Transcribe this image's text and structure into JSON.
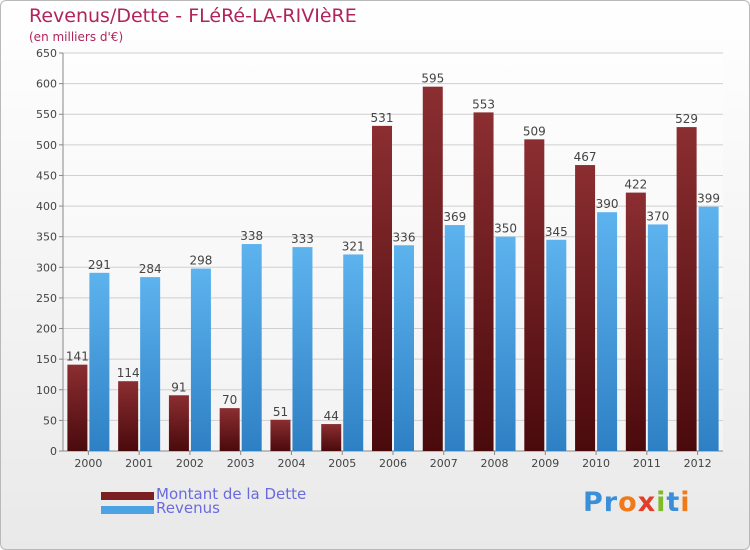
{
  "title": "Revenus/Dette - FLéRé-LA-RIVIèRE",
  "subtitle": "(en milliers d'€)",
  "logo": {
    "text": "Proxiti",
    "colors": [
      "#3a8fd8",
      "#3a8fd8",
      "#f07a1a",
      "#e23c2a",
      "#7dbb27",
      "#3a8fd8",
      "#f07a1a"
    ]
  },
  "colors": {
    "dette": "#7a1f22",
    "revenus": "#4ba3e3",
    "label": "#444444",
    "grid": "#cfcfcf"
  },
  "chart_data": {
    "type": "bar",
    "categories": [
      "2000",
      "2001",
      "2002",
      "2003",
      "2004",
      "2005",
      "2006",
      "2007",
      "2008",
      "2009",
      "2010",
      "2011",
      "2012"
    ],
    "series": [
      {
        "name": "Montant de la Dette",
        "values": [
          141,
          114,
          91,
          70,
          51,
          44,
          531,
          595,
          553,
          509,
          467,
          422,
          529
        ]
      },
      {
        "name": "Revenus",
        "values": [
          291,
          284,
          298,
          338,
          333,
          321,
          336,
          369,
          350,
          345,
          390,
          370,
          399
        ]
      }
    ],
    "ylim": [
      0,
      650
    ],
    "yticks": [
      0,
      50,
      100,
      150,
      200,
      250,
      300,
      350,
      400,
      450,
      500,
      550,
      600,
      650
    ],
    "grid": true,
    "legend_position": "bottom-left"
  }
}
